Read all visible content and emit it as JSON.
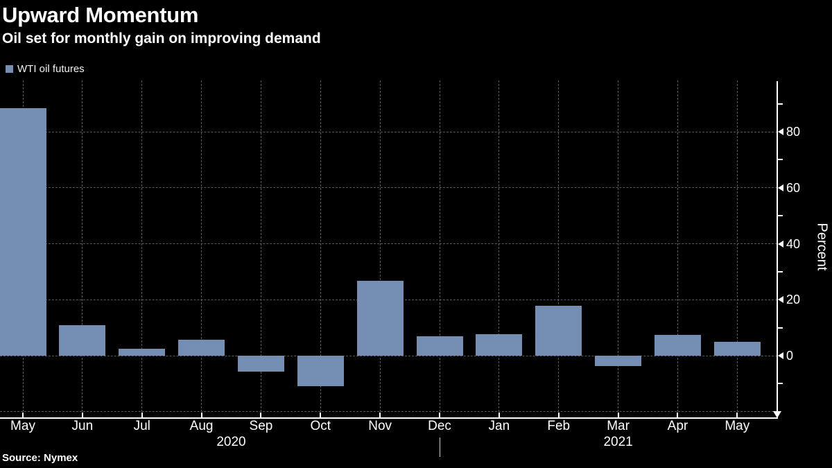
{
  "header": {
    "title": "Upward Momentum",
    "subtitle": "Oil set for monthly gain on improving demand"
  },
  "legend": {
    "label": "WTI oil futures",
    "swatch_color": "#748FB3"
  },
  "source": "Source: Nymex",
  "colors": {
    "background": "#000000",
    "bar": "#748FB3",
    "axis": "#FFFFFF",
    "gridline": "#5A5A5A",
    "text": "#FFFFFF"
  },
  "chart_data": {
    "type": "bar",
    "title": "Upward Momentum",
    "subtitle": "Oil set for monthly gain on improving demand",
    "categories": [
      "May",
      "Jun",
      "Jul",
      "Aug",
      "Sep",
      "Oct",
      "Nov",
      "Dec",
      "Jan",
      "Feb",
      "Mar",
      "Apr",
      "May"
    ],
    "series": [
      {
        "name": "WTI oil futures",
        "values": [
          88.4,
          10.8,
          2.5,
          5.8,
          -5.6,
          -11.0,
          26.7,
          7.0,
          7.6,
          17.8,
          -3.8,
          7.5,
          5.0
        ]
      }
    ],
    "year_groups": [
      {
        "label": "2020",
        "start_index": 0,
        "end_index": 7
      },
      {
        "label": "2021",
        "start_index": 8,
        "end_index": 12
      }
    ],
    "ylabel": "Percent",
    "xlabel": "",
    "ytick_values": [
      80,
      60,
      40,
      20,
      0
    ],
    "ytick_labels": [
      "80",
      "60",
      "40",
      "20",
      "0"
    ],
    "minor_tick_values": [
      90,
      70,
      50,
      30,
      10,
      -10
    ],
    "grid_values": [
      80,
      60,
      40,
      20,
      0,
      -20
    ],
    "ylim": [
      -22,
      98
    ],
    "grid": "dashed",
    "legend_position": "top-left",
    "bar_color": "#748FB3",
    "source": "Source: Nymex"
  }
}
